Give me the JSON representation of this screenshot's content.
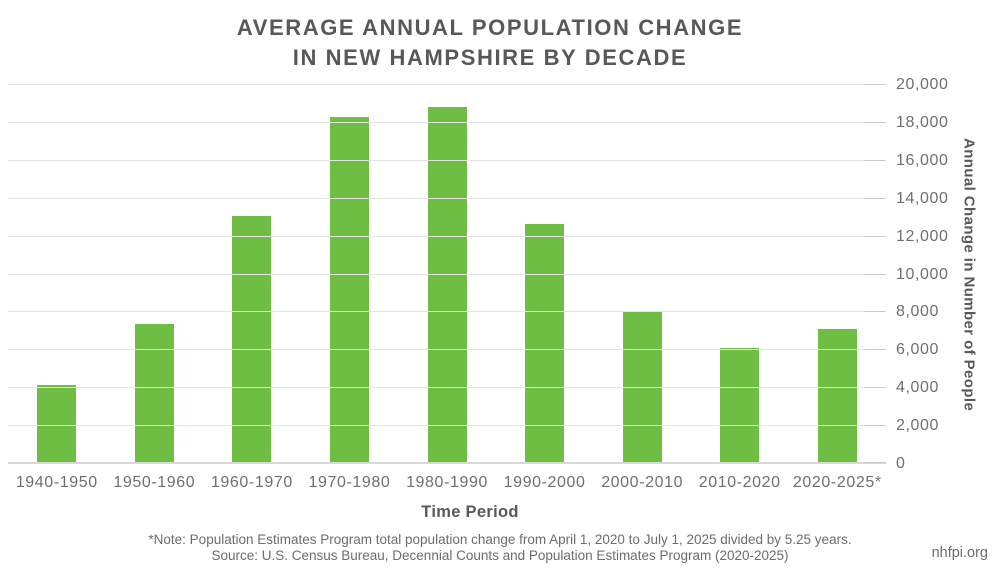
{
  "title": {
    "line1": "AVERAGE ANNUAL POPULATION CHANGE",
    "line2": "IN NEW HAMPSHIRE BY DECADE"
  },
  "chart_data": {
    "type": "bar",
    "title": "Average Annual Population Change in New Hampshire by Decade",
    "categories": [
      "1940-1950",
      "1950-1960",
      "1960-1970",
      "1970-1980",
      "1980-1990",
      "1990-2000",
      "2000-2010",
      "2010-2020",
      "2020-2025*"
    ],
    "values": [
      4170,
      7370,
      13080,
      18290,
      18860,
      12650,
      8070,
      6110,
      7140
    ],
    "xlabel": "Time Period",
    "ylabel": "Annual Change in Number of People",
    "ylim": [
      0,
      20000
    ],
    "ytick_interval": 2000,
    "ytick_labels": [
      "0",
      "2,000",
      "4,000",
      "6,000",
      "8,000",
      "10,000",
      "12,000",
      "14,000",
      "16,000",
      "18,000",
      "20,000"
    ],
    "grid": true,
    "legend": false,
    "yaxis_side": "right",
    "bar_color": "#6fbe44"
  },
  "footer": {
    "note": "*Note: Population Estimates Program total population change from April 1, 2020 to July 1, 2025 divided by 5.25 years.",
    "source": "Source: U.S. Census Bureau, Decennial Counts and Population Estimates Program (2020-2025)",
    "site": "nhfpi.org"
  },
  "colors": {
    "bar": "#6fbe44",
    "title_text": "#57585a",
    "axis_text": "#6e6f72",
    "gridline": "#e4e4e4",
    "background": "#ffffff"
  }
}
